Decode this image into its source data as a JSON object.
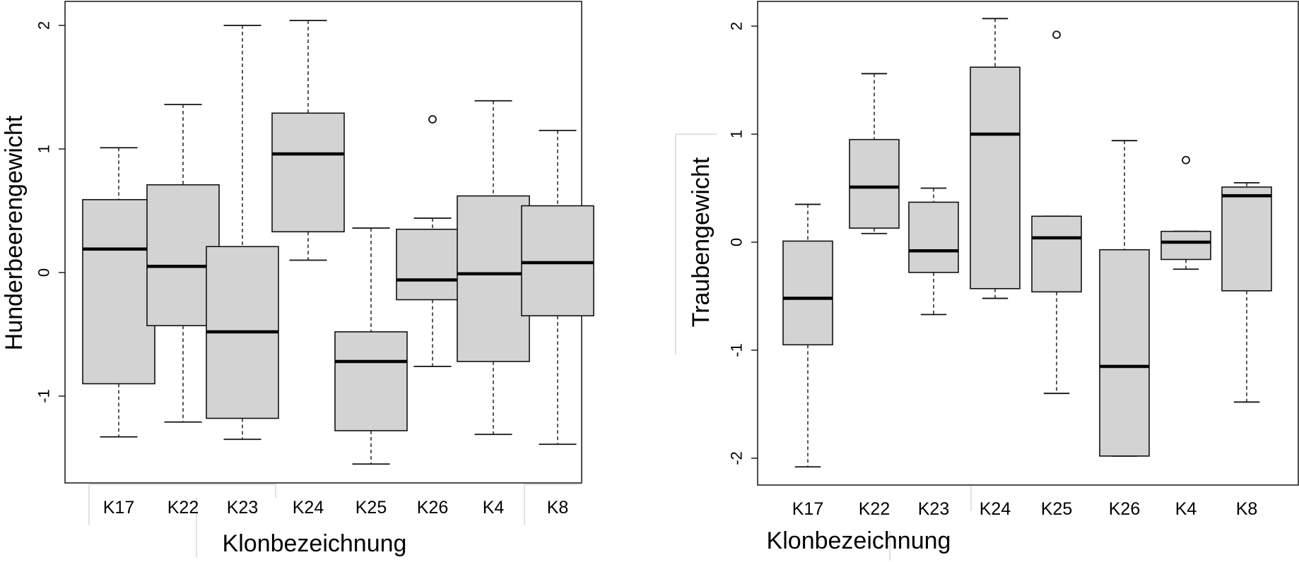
{
  "chart_data": [
    {
      "type": "boxplot",
      "xlabel": "Klonbezeichnung",
      "ylabel": "Hunderbeerengewicht",
      "ylim": [
        -1.7,
        2.2
      ],
      "yticks": [
        "-1",
        "0",
        "1",
        "2"
      ],
      "categories": [
        "K17",
        "K22",
        "K23",
        "K24",
        "K25",
        "K26",
        "K4",
        "K8"
      ],
      "boxes": [
        {
          "category": "K17",
          "whisker_low": -1.33,
          "q1": -0.9,
          "median": 0.19,
          "q3": 0.59,
          "whisker_high": 1.01,
          "outliers": []
        },
        {
          "category": "K22",
          "whisker_low": -1.21,
          "q1": -0.43,
          "median": 0.05,
          "q3": 0.71,
          "whisker_high": 1.36,
          "outliers": []
        },
        {
          "category": "K23",
          "whisker_low": -1.35,
          "q1": -1.18,
          "median": -0.48,
          "q3": 0.21,
          "whisker_high": 2.0,
          "outliers": []
        },
        {
          "category": "K24",
          "whisker_low": 0.1,
          "q1": 0.33,
          "median": 0.96,
          "q3": 1.29,
          "whisker_high": 2.04,
          "outliers": []
        },
        {
          "category": "K25",
          "whisker_low": -1.55,
          "q1": -1.28,
          "median": -0.72,
          "q3": -0.48,
          "whisker_high": 0.36,
          "outliers": []
        },
        {
          "category": "K26",
          "whisker_low": -0.76,
          "q1": -0.22,
          "median": -0.06,
          "q3": 0.35,
          "whisker_high": 0.44,
          "outliers": [
            1.24
          ]
        },
        {
          "category": "K4",
          "whisker_low": -1.31,
          "q1": -0.72,
          "median": -0.01,
          "q3": 0.62,
          "whisker_high": 1.39,
          "outliers": []
        },
        {
          "category": "K8",
          "whisker_low": -1.39,
          "q1": -0.35,
          "median": 0.08,
          "q3": 0.54,
          "whisker_high": 1.15,
          "outliers": []
        }
      ]
    },
    {
      "type": "boxplot",
      "xlabel": "Klonbezeichnung",
      "ylabel": "Traubengewicht",
      "ylim": [
        -2.25,
        2.3
      ],
      "yticks": [
        "-2",
        "-1",
        "0",
        "1",
        "2"
      ],
      "categories": [
        "K17",
        "K22",
        "K23",
        "K24",
        "K25",
        "K26",
        "K4",
        "K8"
      ],
      "boxes": [
        {
          "category": "K17",
          "whisker_low": -2.08,
          "q1": -0.95,
          "median": -0.52,
          "q3": 0.01,
          "whisker_high": 0.35,
          "outliers": []
        },
        {
          "category": "K22",
          "whisker_low": 0.08,
          "q1": 0.13,
          "median": 0.51,
          "q3": 0.95,
          "whisker_high": 1.56,
          "outliers": []
        },
        {
          "category": "K23",
          "whisker_low": -0.67,
          "q1": -0.28,
          "median": -0.08,
          "q3": 0.37,
          "whisker_high": 0.5,
          "outliers": []
        },
        {
          "category": "K24",
          "whisker_low": -0.52,
          "q1": -0.43,
          "median": 1.0,
          "q3": 1.62,
          "whisker_high": 2.07,
          "outliers": []
        },
        {
          "category": "K25",
          "whisker_low": -1.4,
          "q1": -0.46,
          "median": 0.04,
          "q3": 0.24,
          "whisker_high": 0.24,
          "outliers": [
            1.92
          ]
        },
        {
          "category": "K26",
          "whisker_low": -1.98,
          "q1": -1.98,
          "median": -1.15,
          "q3": -0.07,
          "whisker_high": 0.94,
          "outliers": []
        },
        {
          "category": "K4",
          "whisker_low": -0.25,
          "q1": -0.16,
          "median": 0.0,
          "q3": 0.1,
          "whisker_high": 0.1,
          "outliers": [
            0.76
          ]
        },
        {
          "category": "K8",
          "whisker_low": -1.48,
          "q1": -0.45,
          "median": 0.43,
          "q3": 0.51,
          "whisker_high": 0.55,
          "outliers": []
        }
      ]
    }
  ]
}
